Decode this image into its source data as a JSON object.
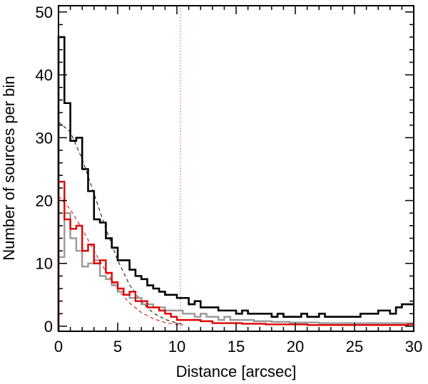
{
  "chart_data": {
    "type": "line",
    "step": true,
    "xlabel": "Distance [arcsec]",
    "ylabel": "Number of sources per bin",
    "xlim": [
      0,
      30
    ],
    "ylim": [
      -0.8,
      51
    ],
    "xticks": [
      0,
      5,
      10,
      15,
      20,
      25,
      30
    ],
    "yticks": [
      0,
      10,
      20,
      30,
      40,
      50
    ],
    "grid": false,
    "bin_width": 0.5,
    "series": [
      {
        "color": "#000000",
        "style": "step",
        "bin_start": [
          0,
          0.5,
          1,
          1.5,
          2,
          2.5,
          3,
          3.5,
          4,
          4.5,
          5,
          5.5,
          6,
          6.5,
          7,
          7.5,
          8,
          8.5,
          9,
          9.5,
          10,
          10.5,
          11,
          11.5,
          12,
          12.5,
          13,
          13.5,
          14,
          14.5,
          15,
          15.5,
          16,
          16.5,
          17,
          17.5,
          18,
          18.5,
          19,
          19.5,
          20,
          20.5,
          21,
          21.5,
          22,
          22.5,
          23,
          23.5,
          24,
          24.5,
          25,
          25.5,
          26,
          26.5,
          27,
          27.5,
          28,
          28.5,
          29,
          29.5
        ],
        "values": [
          46,
          35.5,
          29.5,
          30,
          25,
          21.5,
          17,
          16.5,
          14,
          12.5,
          10.5,
          10.5,
          9,
          8,
          7.5,
          6.5,
          6,
          5.5,
          5,
          5,
          4.5,
          4.5,
          3.5,
          4,
          3,
          3,
          3,
          2.5,
          2.5,
          2.5,
          2,
          2.5,
          2,
          2,
          2,
          2,
          1.5,
          2,
          1.5,
          1.5,
          1.5,
          2,
          1.5,
          1.5,
          2,
          1.5,
          1.5,
          1.5,
          1.5,
          1.5,
          1.5,
          2,
          2,
          2,
          2.5,
          2.5,
          2,
          3,
          3.5,
          3.5
        ]
      },
      {
        "color": "#e00000",
        "style": "step",
        "bin_start": [
          0,
          0.5,
          1,
          1.5,
          2,
          2.5,
          3,
          3.5,
          4,
          4.5,
          5,
          5.5,
          6,
          6.5,
          7,
          7.5,
          8,
          8.5,
          9,
          9.5,
          10,
          10.5,
          11,
          11.5,
          12,
          12.5,
          13,
          13.5,
          14,
          14.5,
          15,
          15.5,
          16,
          16.5,
          17,
          17.5,
          18,
          18.5,
          19,
          19.5,
          20,
          20.5,
          21,
          21.5,
          22,
          22.5,
          23,
          23.5,
          24,
          24.5,
          25,
          25.5,
          26,
          26.5,
          27,
          27.5,
          28,
          28.5,
          29,
          29.5
        ],
        "values": [
          23,
          17,
          15.5,
          16,
          12,
          13,
          10,
          10.5,
          8.5,
          7,
          6,
          5,
          5.5,
          4,
          4,
          3,
          3,
          2.5,
          2,
          1.5,
          1,
          1,
          1,
          1,
          0.8,
          0.8,
          0.5,
          0.5,
          0.5,
          0.5,
          0.5,
          0.4,
          0.4,
          0.4,
          0.4,
          0.3,
          0.3,
          0.3,
          0.3,
          0.3,
          0.3,
          0.3,
          0.2,
          0.2,
          0.2,
          0.2,
          0.2,
          0.2,
          0.2,
          0.2,
          0.2,
          0.2,
          0.2,
          0.2,
          0.2,
          0.2,
          0.2,
          0.2,
          0.2,
          0.3
        ]
      },
      {
        "color": "#999999",
        "style": "step",
        "bin_start": [
          0,
          0.5,
          1,
          1.5,
          2,
          2.5,
          3,
          3.5,
          4,
          4.5,
          5,
          5.5,
          6,
          6.5,
          7,
          7.5,
          8,
          8.5,
          9,
          9.5,
          10,
          10.5,
          11,
          11.5,
          12,
          12.5,
          13,
          13.5,
          14,
          14.5,
          15,
          15.5,
          16,
          16.5,
          17,
          17.5,
          18,
          18.5,
          19,
          19.5,
          20,
          20.5,
          21,
          21.5,
          22,
          22.5,
          23,
          23.5,
          24,
          24.5,
          25,
          25.5,
          26,
          26.5,
          27,
          27.5,
          28,
          28.5,
          29,
          29.5
        ],
        "values": [
          11,
          18,
          14,
          12,
          9.5,
          10,
          10.5,
          8,
          7.5,
          6.5,
          5.5,
          5,
          4.5,
          4.5,
          3.5,
          3.5,
          3,
          3,
          2.5,
          2.5,
          2.5,
          2,
          2,
          1.5,
          2,
          1.5,
          1.5,
          1,
          1.5,
          1,
          1,
          1,
          1,
          0.8,
          0.8,
          0.8,
          0.7,
          0.7,
          0.7,
          0.6,
          0.6,
          0.6,
          0.6,
          0.6,
          0.5,
          0.5,
          0.5,
          0.5,
          0.5,
          0.5,
          0.5,
          0.5,
          0.5,
          0.5,
          0.5,
          0.5,
          0.5,
          0.5,
          0.5,
          0.5
        ]
      },
      {
        "color": "#000000",
        "style": "dashed",
        "x": [
          0,
          1,
          2,
          3,
          4,
          5,
          6,
          7,
          8,
          9,
          10,
          10.5
        ],
        "values": [
          32.5,
          30.9,
          26.6,
          21.1,
          15.5,
          10.5,
          6.6,
          3.9,
          2.1,
          1.1,
          0.5,
          0.3
        ]
      },
      {
        "color": "#e00000",
        "style": "dashed",
        "x": [
          0,
          1,
          2,
          3,
          4,
          5,
          6,
          7,
          8,
          9,
          10,
          10.5
        ],
        "values": [
          20.7,
          18.6,
          15.5,
          12.0,
          8.7,
          5.9,
          3.7,
          2.2,
          1.2,
          0.6,
          0.3,
          0.2
        ]
      }
    ],
    "reference_lines": [
      {
        "axis": "x",
        "value": 10.3,
        "color": "#e00000",
        "style": "dotted"
      }
    ]
  }
}
